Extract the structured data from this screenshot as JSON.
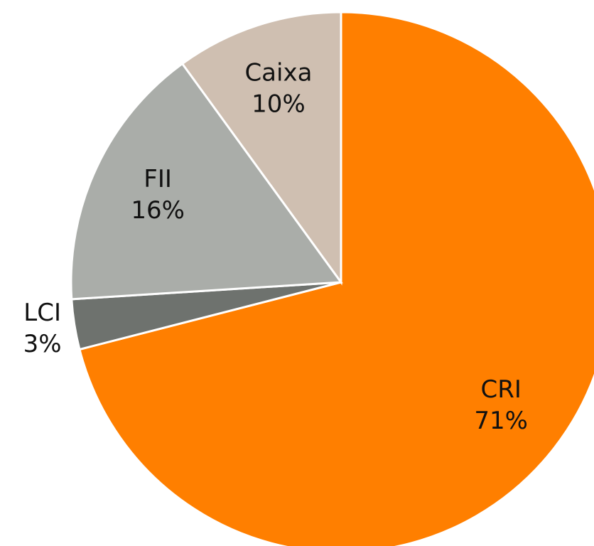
{
  "chart_data": {
    "type": "pie",
    "categories": [
      "CRI",
      "LCI",
      "FII",
      "Caixa"
    ],
    "values": [
      71,
      3,
      16,
      10
    ],
    "value_labels": [
      "71%",
      "3%",
      "16%",
      "10%"
    ],
    "colors": [
      "#ff7f00",
      "#6e726e",
      "#aaada9",
      "#cfbfb1"
    ]
  }
}
